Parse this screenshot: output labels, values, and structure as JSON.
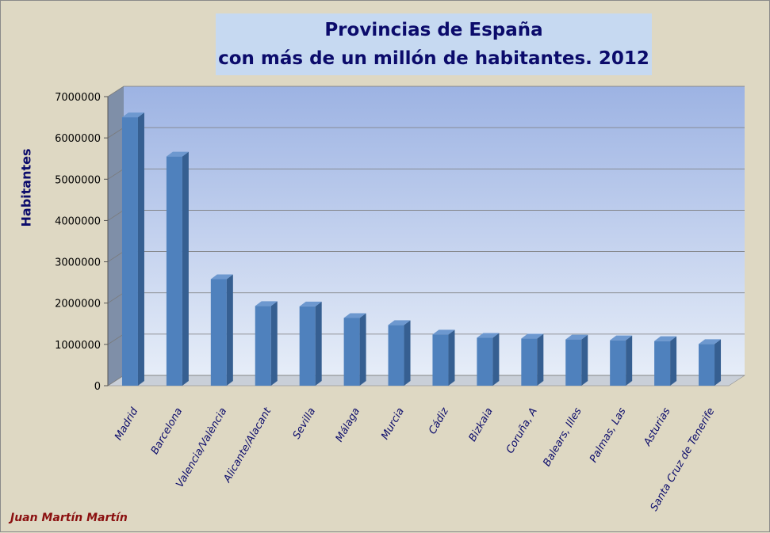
{
  "chart_data": {
    "type": "bar",
    "title_line1": "Provincias de España",
    "title_line2": "con más de un millón de habitantes. 2012",
    "xlabel": "",
    "ylabel": "Habitantes",
    "ylim": [
      0,
      7000000
    ],
    "yticks": [
      "0",
      "1000000",
      "2000000",
      "3000000",
      "4000000",
      "5000000",
      "6000000",
      "7000000"
    ],
    "grid": true,
    "categories": [
      "Madrid",
      "Barcelona",
      "Valencia/València",
      "Alicante/Alacant",
      "Sevilla",
      "Málaga",
      "Murcia",
      "Cádiz",
      "Bizkaia",
      "Coruña, A",
      "Balears, Illes",
      "Palmas, Las",
      "Asturias",
      "Santa Cruz de Tenerife"
    ],
    "values": [
      6500000,
      5550000,
      2580000,
      1930000,
      1920000,
      1640000,
      1470000,
      1240000,
      1160000,
      1140000,
      1120000,
      1100000,
      1080000,
      1010000
    ],
    "colors": {
      "bar": "#4f81bd",
      "bar_top": "#6d98cf",
      "bar_side": "#365f91",
      "plot_top": "#9db3e3",
      "plot_bottom": "#e6edf8",
      "wall_side": "#7f8fa8",
      "floor": "#c9cfd8"
    }
  },
  "author": "Juan Martín Martín"
}
